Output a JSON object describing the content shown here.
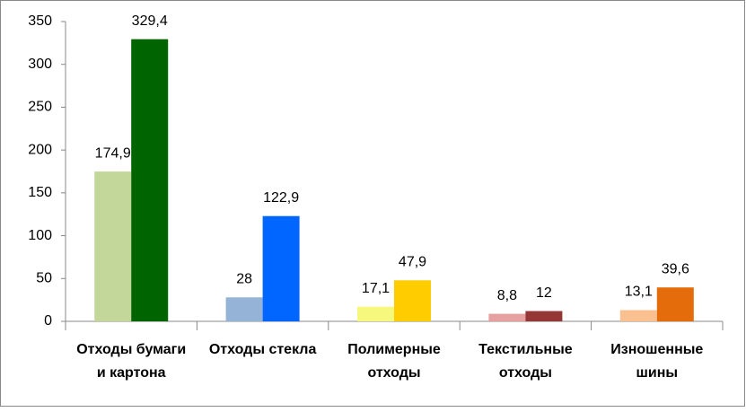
{
  "chart_data": {
    "type": "bar",
    "categories": [
      [
        "Отходы бумаги",
        "и картона"
      ],
      [
        "Отходы стекла"
      ],
      [
        "Полимерные",
        "отходы"
      ],
      [
        "Текстильные",
        "отходы"
      ],
      [
        "Изношенные",
        "шины"
      ]
    ],
    "series": [
      {
        "colors": [
          "#c4d79b",
          "#95b3d7",
          "#f6f77d",
          "#e6a0a0",
          "#fac090"
        ],
        "values": [
          174.9,
          28,
          17.1,
          8.8,
          13.1
        ],
        "value_labels": [
          "174,9",
          "28",
          "17,1",
          "8,8",
          "13,1"
        ]
      },
      {
        "colors": [
          "#006400",
          "#0066ff",
          "#ffcc00",
          "#953735",
          "#e46c0a"
        ],
        "values": [
          329.4,
          122.9,
          47.9,
          12,
          39.6
        ],
        "value_labels": [
          "329,4",
          "122,9",
          "47,9",
          "12",
          "39,6"
        ]
      }
    ],
    "ylim": [
      0,
      350
    ],
    "yticks": [
      0,
      50,
      100,
      150,
      200,
      250,
      300,
      350
    ],
    "grid": false
  }
}
